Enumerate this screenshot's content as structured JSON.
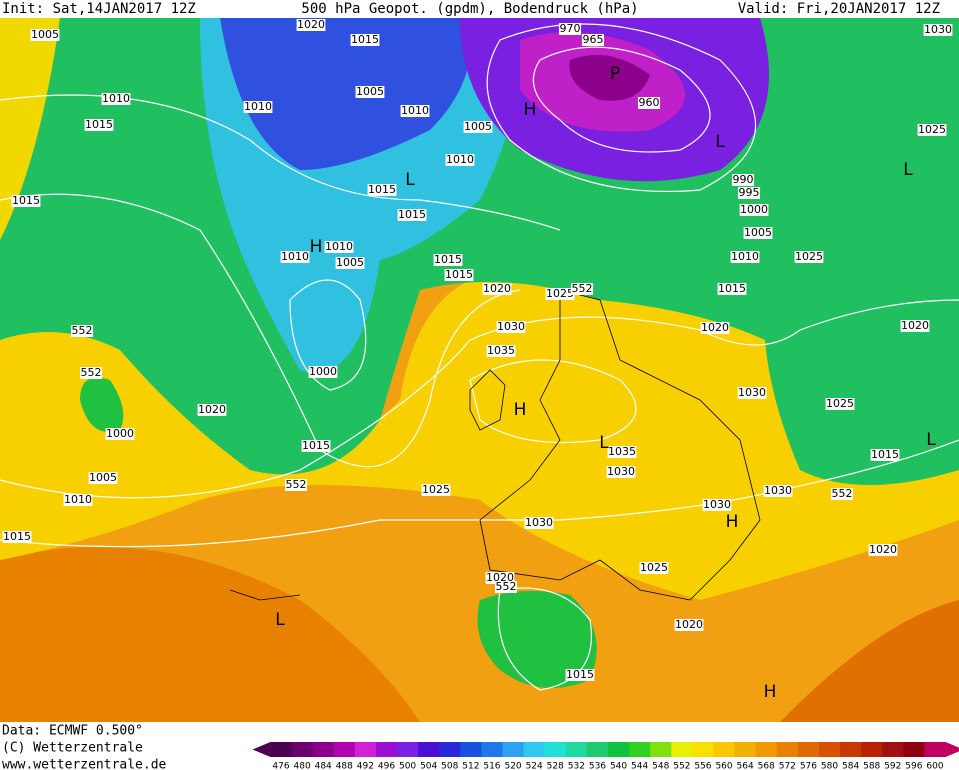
{
  "header": {
    "init": "Init: Sat,14JAN2017 12Z",
    "title": "500 hPa Geopot. (gpdm), Bodendruck (hPa)",
    "valid": "Valid: Fri,20JAN2017 12Z"
  },
  "footer": {
    "data": "Data: ECMWF   0.500°",
    "copyright": "(C) Wetterzentrale",
    "url": "www.wetterzentrale.de"
  },
  "isobar_labels": [
    "1005",
    "1020",
    "1015",
    "970",
    "965",
    "960",
    "1030",
    "1010",
    "1005",
    "1010",
    "1010",
    "1015",
    "1005",
    "1025",
    "1010",
    "1015",
    "990",
    "995",
    "1000",
    "1015",
    "1015",
    "1005",
    "1010",
    "1010",
    "1005",
    "1015",
    "1010",
    "1025",
    "1015",
    "1020",
    "1025",
    "1015",
    "552",
    "1020",
    "1020",
    "552",
    "1030",
    "1035",
    "552",
    "1000",
    "1030",
    "1025",
    "1020",
    "1000",
    "1035",
    "1015",
    "1015",
    "1030",
    "1005",
    "552",
    "1025",
    "1030",
    "552",
    "1010",
    "1030",
    "1030",
    "1015",
    "1020",
    "1025",
    "1020",
    "552",
    "1020",
    "1015"
  ],
  "pressure_centers": [
    "P",
    "H",
    "L",
    "L",
    "L",
    "H",
    "H",
    "L",
    "L",
    "H",
    "L",
    "H"
  ],
  "colorbar": {
    "levels": [
      476,
      480,
      484,
      488,
      492,
      496,
      500,
      504,
      508,
      512,
      516,
      520,
      524,
      528,
      532,
      536,
      540,
      544,
      548,
      552,
      556,
      560,
      564,
      568,
      572,
      576,
      580,
      584,
      588,
      592,
      596,
      600
    ],
    "colors": [
      "#4b0050",
      "#6a0070",
      "#8b008b",
      "#b000b0",
      "#d020d8",
      "#9a10d0",
      "#7a20e0",
      "#4a10d0",
      "#2a28d8",
      "#1850e0",
      "#1e78e8",
      "#30a0f0",
      "#30c8f0",
      "#20e0d8",
      "#20d8a0",
      "#20c870",
      "#10c040",
      "#30d020",
      "#80e010",
      "#e8f000",
      "#f8e000",
      "#f8c800",
      "#f0b000",
      "#f09800",
      "#e88000",
      "#e06800",
      "#d85000",
      "#c83800",
      "#b82000",
      "#a01010",
      "#900010",
      "#c00060"
    ]
  }
}
